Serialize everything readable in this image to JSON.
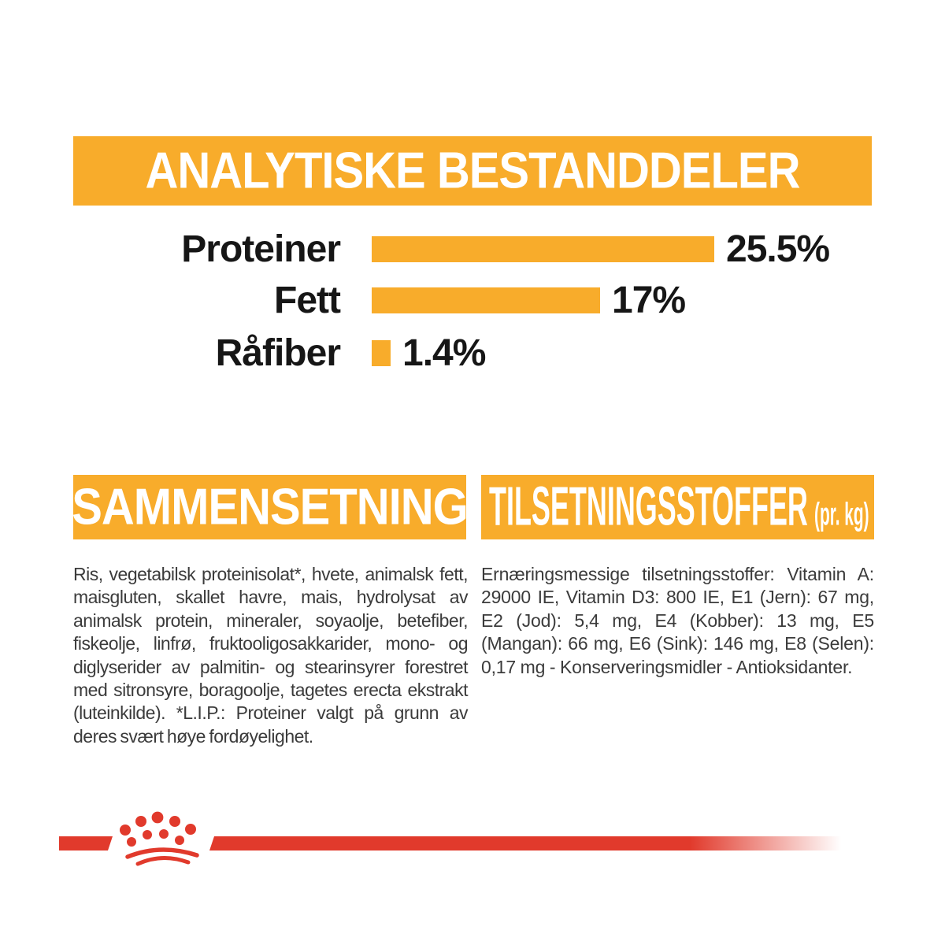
{
  "colors": {
    "brand_orange": "#F8AC2B",
    "brand_red": "#E13A2C",
    "heading_text": "#FFFFFF",
    "chart_text": "#161616",
    "body_text": "#3B3B3B",
    "page_bg": "#FFFFFF"
  },
  "header": {
    "title": "ANALYTISKE BESTANDDELER"
  },
  "chart_data": {
    "type": "bar",
    "orientation": "horizontal",
    "title": "ANALYTISKE BESTANDDELER",
    "categories": [
      "Proteiner",
      "Fett",
      "Råfiber"
    ],
    "values": [
      25.5,
      17,
      1.4
    ],
    "value_labels": [
      "25.5%",
      "17%",
      "1.4%"
    ],
    "unit": "%",
    "xlim": [
      0,
      25.5
    ],
    "bar_color": "#F8AC2B",
    "grid": false,
    "legend": false,
    "value_label_position": "right-of-bar"
  },
  "sections": {
    "composition": {
      "heading": "SAMMENSETNING",
      "body": "Ris, vegetabilsk proteinisolat*, hvete, animalsk fett, maisgluten, skallet havre, mais, hydrolysat av animalsk protein, mineraler, soyaolje, betefiber, fiskeolje, linfrø, fruktooligosakkarider, mono- og diglyserider av palmitin- og stearinsyrer forestret med sitronsyre, boragoolje, tagetes erecta ekstrakt (luteinkilde). *L.I.P.: Proteiner valgt på grunn av deres svært høye fordøyelighet."
    },
    "additives": {
      "heading": "TILSETNINGSSTOFFER",
      "heading_suffix": "(pr. kg)",
      "body": "Ernæringsmessige tilsetningsstoffer: Vitamin A: 29000 IE, Vitamin D3: 800 IE, E1 (Jern): 67 mg, E2 (Jod): 5,4 mg, E4 (Kobber): 13 mg, E5 (Mangan): 66 mg, E6 (Sink): 146 mg, E8 (Selen): 0,17 mg - Konserveringsmidler - Antioksidanter."
    }
  },
  "footer": {
    "logo": "royal-canin-crown"
  }
}
